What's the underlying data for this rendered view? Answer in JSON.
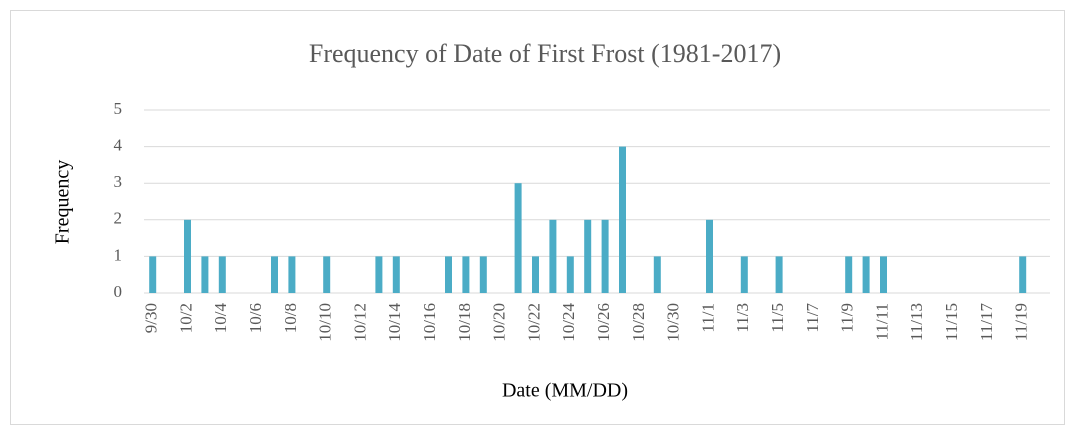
{
  "chart_data": {
    "type": "bar",
    "title": "Frequency of Date of First Frost (1981-2017)",
    "x_label": "Date (MM/DD)",
    "y_label": "Frequency",
    "categories": [
      "9/30",
      null,
      "10/2",
      null,
      "10/4",
      null,
      "10/6",
      null,
      "10/8",
      null,
      "10/10",
      null,
      "10/12",
      null,
      "10/14",
      null,
      "10/16",
      null,
      "10/18",
      null,
      "10/20",
      null,
      "10/22",
      null,
      "10/24",
      null,
      "10/26",
      null,
      "10/28",
      null,
      "10/30",
      null,
      "11/1",
      null,
      "11/3",
      null,
      "11/5",
      null,
      "11/7",
      null,
      "11/9",
      null,
      "11/11",
      null,
      "11/13",
      null,
      "11/15",
      null,
      "11/17",
      null,
      "11/19"
    ],
    "values": [
      1,
      0,
      2,
      1,
      1,
      0,
      0,
      1,
      1,
      0,
      1,
      0,
      0,
      1,
      1,
      0,
      0,
      1,
      1,
      1,
      0,
      3,
      1,
      2,
      1,
      2,
      2,
      4,
      0,
      1,
      0,
      0,
      2,
      0,
      1,
      0,
      1,
      0,
      0,
      0,
      1,
      1,
      1,
      0,
      0,
      0,
      0,
      0,
      0,
      0,
      1
    ],
    "color": "#4bacc6",
    "ylim": [
      0,
      5
    ],
    "yticks": [
      0,
      1,
      2,
      3,
      4,
      5
    ],
    "grid": true
  }
}
